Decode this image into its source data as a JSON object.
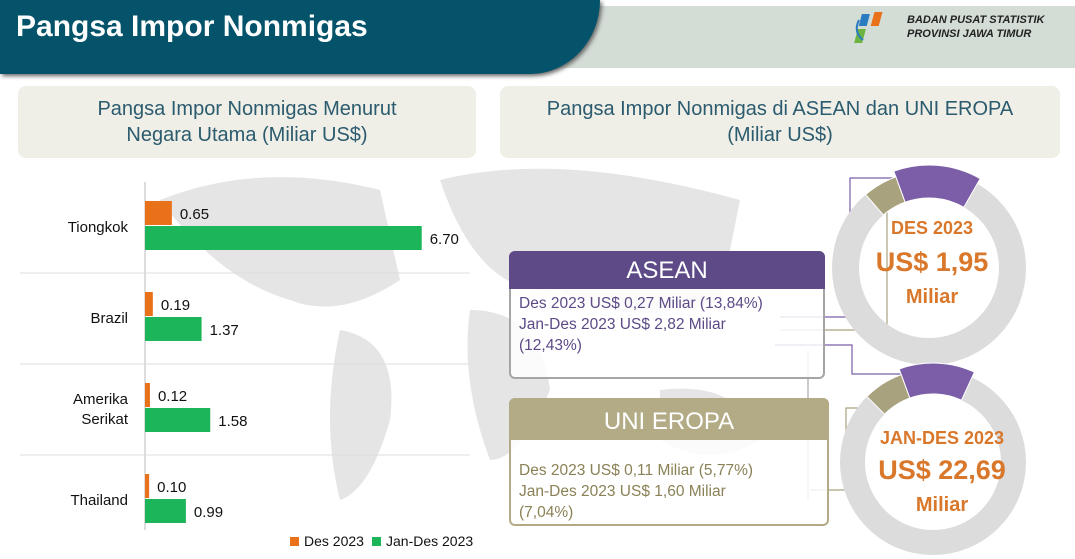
{
  "header": {
    "title": "Pangsa Impor Nonmigas",
    "org_line1": "BADAN PUSAT STATISTIK",
    "org_line2": "PROVINSI JAWA TIMUR"
  },
  "left_panel": {
    "title_line1": "Pangsa Impor Nonmigas Menurut",
    "title_line2": "Negara Utama (Miliar US$)"
  },
  "right_panel": {
    "title_line1": "Pangsa Impor Nonmigas di ASEAN dan UNI EROPA",
    "title_line2": "(Miliar US$)"
  },
  "asean": {
    "label": "ASEAN",
    "line1": "Des 2023 US$ 0,27 Miliar (13,84%)",
    "line2": "Jan-Des 2023 US$ 2,82 Miliar",
    "line3": "(12,43%)"
  },
  "eu": {
    "label": "UNI EROPA",
    "line1": "Des 2023 US$ 0,11 Miliar (5,77%)",
    "line2": "Jan-Des 2023 US$ 1,60 Miliar",
    "line3": "(7,04%)"
  },
  "donut1": {
    "period": "DES 2023",
    "value": "US$ 1,95",
    "unit": "Miliar",
    "asean_pct": 13.84,
    "eu_pct": 5.77
  },
  "donut2": {
    "period": "JAN-DES 2023",
    "value": "US$ 22,69",
    "unit": "Miliar",
    "asean_pct": 12.43,
    "eu_pct": 7.04
  },
  "colors": {
    "des": "#e8711a",
    "jandes": "#1db55a",
    "asean": "#7b5ea7",
    "eu": "#a9a27e",
    "ring": "#dcdcdc",
    "center_text": "#d9772a"
  },
  "chart_data": {
    "type": "bar",
    "orientation": "horizontal",
    "categories": [
      "Tiongkok",
      "Brazil",
      "Amerika Serikat",
      "Thailand"
    ],
    "category_lines": [
      [
        "Tiongkok"
      ],
      [
        "Brazil"
      ],
      [
        "Amerika",
        "Serikat"
      ],
      [
        "Thailand"
      ]
    ],
    "series": [
      {
        "name": "Des 2023",
        "values": [
          0.65,
          0.19,
          0.12,
          0.1
        ],
        "labels": [
          "0.65",
          "0.19",
          "0.12",
          "0.10"
        ]
      },
      {
        "name": "Jan-Des 2023",
        "values": [
          6.7,
          1.37,
          1.58,
          0.99
        ],
        "labels": [
          "6.70",
          "1.37",
          "1.58",
          "0.99"
        ]
      }
    ],
    "legend": "bottom"
  }
}
